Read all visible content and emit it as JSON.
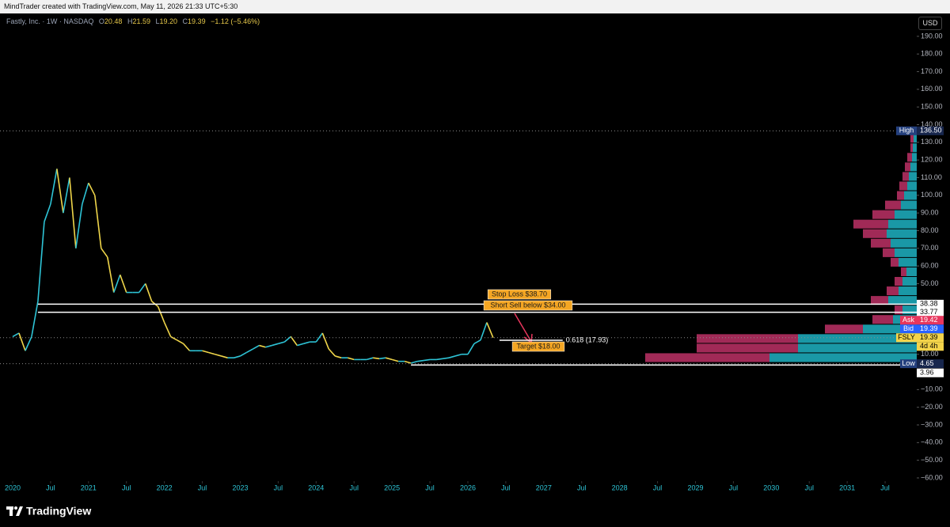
{
  "header": {
    "credit": "MindTrader created with TradingView.com, May 11, 2026 21:33 UTC+5:30",
    "currency": "USD"
  },
  "footer": {
    "brand": "TradingView"
  },
  "chart_data": {
    "type": "line",
    "title": "Fastly, Inc. · 1W · NASDAQ",
    "ohlc": [
      {
        "key": "O",
        "text": "20.48"
      },
      {
        "key": "H",
        "text": "21.59"
      },
      {
        "key": "L",
        "text": "19.20"
      },
      {
        "key": "C",
        "text": "19.39"
      }
    ],
    "change": "−1.12 (−5.46%)",
    "x": [
      "2020-01",
      "2020-02",
      "2020-03",
      "2020-04",
      "2020-05",
      "2020-06",
      "2020-07",
      "2020-08",
      "2020-09",
      "2020-10",
      "2020-11",
      "2020-12",
      "2021-01",
      "2021-02",
      "2021-03",
      "2021-04",
      "2021-05",
      "2021-06",
      "2021-07",
      "2021-08",
      "2021-09",
      "2021-10",
      "2021-11",
      "2021-12",
      "2022-01",
      "2022-02",
      "2022-03",
      "2022-04",
      "2022-05",
      "2022-06",
      "2022-07",
      "2022-08",
      "2022-09",
      "2022-10",
      "2022-11",
      "2022-12",
      "2023-01",
      "2023-02",
      "2023-03",
      "2023-04",
      "2023-05",
      "2023-06",
      "2023-07",
      "2023-08",
      "2023-09",
      "2023-10",
      "2023-11",
      "2023-12",
      "2024-01",
      "2024-02",
      "2024-03",
      "2024-04",
      "2024-05",
      "2024-06",
      "2024-07",
      "2024-08",
      "2024-09",
      "2024-10",
      "2024-11",
      "2024-12",
      "2025-01",
      "2025-02",
      "2025-03",
      "2025-04",
      "2025-05",
      "2025-06",
      "2025-07",
      "2025-08",
      "2025-09",
      "2025-10",
      "2025-11",
      "2025-12",
      "2026-01",
      "2026-02",
      "2026-03",
      "2026-04",
      "2026-05"
    ],
    "series": [
      {
        "up_color": "#2ec4d6",
        "down_color": "#f0d64a",
        "values": [
          20,
          22,
          12,
          20,
          40,
          85,
          95,
          115,
          90,
          110,
          70,
          95,
          107,
          100,
          70,
          65,
          45,
          55,
          45,
          45,
          45,
          50,
          40,
          37,
          28,
          20,
          18,
          16,
          12,
          12,
          12,
          11,
          10,
          9,
          8,
          8,
          9,
          11,
          13,
          15,
          14,
          15,
          16,
          17,
          20,
          15,
          16,
          17,
          17,
          22,
          13,
          9,
          8,
          8,
          7,
          7,
          7,
          8,
          7.5,
          8,
          7,
          6,
          6,
          5,
          6,
          6.5,
          7,
          7,
          7.5,
          8,
          9,
          10,
          10,
          16,
          18,
          28,
          19.39
        ]
      }
    ],
    "xlim": [
      "2019-11",
      "2031-12"
    ],
    "xticks": [
      {
        "value": "2020-01",
        "label": "2020"
      },
      {
        "value": "2020-07",
        "label": "Jul"
      },
      {
        "value": "2021-01",
        "label": "2021"
      },
      {
        "value": "2021-07",
        "label": "Jul"
      },
      {
        "value": "2022-01",
        "label": "2022"
      },
      {
        "value": "2022-07",
        "label": "Jul"
      },
      {
        "value": "2023-01",
        "label": "2023"
      },
      {
        "value": "2023-07",
        "label": "Jul"
      },
      {
        "value": "2024-01",
        "label": "2024"
      },
      {
        "value": "2024-07",
        "label": "Jul"
      },
      {
        "value": "2025-01",
        "label": "2025"
      },
      {
        "value": "2025-07",
        "label": "Jul"
      },
      {
        "value": "2026-01",
        "label": "2026"
      },
      {
        "value": "2026-07",
        "label": "Jul"
      },
      {
        "value": "2027-01",
        "label": "2027"
      },
      {
        "value": "2027-07",
        "label": "Jul"
      },
      {
        "value": "2028-01",
        "label": "2028"
      },
      {
        "value": "2028-07",
        "label": "Jul"
      },
      {
        "value": "2029-01",
        "label": "2029"
      },
      {
        "value": "2029-07",
        "label": "Jul"
      },
      {
        "value": "2030-01",
        "label": "2030"
      },
      {
        "value": "2030-07",
        "label": "Jul"
      },
      {
        "value": "2031-01",
        "label": "2031"
      },
      {
        "value": "2031-07",
        "label": "Jul"
      }
    ],
    "ylim": [
      -61.8,
      202.5
    ],
    "yticks": [
      {
        "value": 190,
        "label": "190.00"
      },
      {
        "value": 180,
        "label": "180.00"
      },
      {
        "value": 170,
        "label": "170.00"
      },
      {
        "value": 160,
        "label": "160.00"
      },
      {
        "value": 150,
        "label": "150.00"
      },
      {
        "value": 140,
        "label": "140.00"
      },
      {
        "value": 130,
        "label": "130.00"
      },
      {
        "value": 120,
        "label": "120.00"
      },
      {
        "value": 110,
        "label": "110.00"
      },
      {
        "value": 100,
        "label": "100.00"
      },
      {
        "value": 90,
        "label": "90.00"
      },
      {
        "value": 80,
        "label": "80.00"
      },
      {
        "value": 70,
        "label": "70.00"
      },
      {
        "value": 60,
        "label": "60.00"
      },
      {
        "value": 50,
        "label": "50.00"
      },
      {
        "value": 10,
        "label": "10.00"
      },
      {
        "value": -10,
        "label": "−10.00"
      },
      {
        "value": -20,
        "label": "−20.00"
      },
      {
        "value": -30,
        "label": "−30.00"
      },
      {
        "value": -40,
        "label": "−40.00"
      },
      {
        "value": -50,
        "label": "−50.00"
      },
      {
        "value": -60,
        "label": "−60.00"
      }
    ],
    "grid": false,
    "volume_profile": {
      "up_color": "#1a98a6",
      "down_color": "#a12a57",
      "price": [
        8.1,
        13.5,
        18.9,
        24.3,
        29.7,
        35.1,
        40.5,
        45.9,
        51.3,
        56.7,
        62.1,
        67.5,
        72.9,
        78.3,
        83.7,
        89.1,
        94.5,
        99.9,
        105.3,
        110.7,
        116.1,
        121.5,
        126.9,
        132.3
      ],
      "up": [
        186,
        150,
        150,
        68,
        30,
        18,
        36,
        23,
        18,
        13,
        23,
        28,
        33,
        38,
        36,
        28,
        20,
        16,
        12,
        10,
        8,
        6,
        5,
        4
      ],
      "down": [
        157,
        128,
        128,
        48,
        26,
        10,
        22,
        15,
        10,
        7,
        10,
        15,
        25,
        30,
        44,
        28,
        20,
        9,
        10,
        8,
        7,
        6,
        3,
        4
      ]
    },
    "price_labels": [
      {
        "tag": "High",
        "value": 136.5,
        "label": "136.50",
        "tag_color": "#24407e",
        "color": "#17264d",
        "text_color": "#ffffff",
        "line": "dotted"
      },
      {
        "value": 38.38,
        "label": "38.38",
        "color": "#ffffff",
        "text_color": "#000000",
        "line": "solid",
        "from": "2020-05"
      },
      {
        "value": 33.77,
        "label": "33.77",
        "color": "#ffffff",
        "text_color": "#000000",
        "line": "solid",
        "from": "2020-05"
      },
      {
        "tag": "Ask",
        "value": 19.42,
        "label": "19.42",
        "tag_color": "#e8365d",
        "color": "#e8365d",
        "text_color": "#ffffff"
      },
      {
        "tag": "Bid",
        "value": 19.39,
        "label": "19.39",
        "tag_color": "#2962ff",
        "color": "#2962ff",
        "text_color": "#ffffff"
      },
      {
        "tag": "FSLY",
        "value": 19.39,
        "label": "19.39",
        "tag_color": "#f3d34a",
        "color": "#f3d34a",
        "text_color": "#000000",
        "line": "dotted",
        "countdown": "4d 4h"
      },
      {
        "tag": "Low",
        "value": 4.65,
        "label": "4.65",
        "tag_color": "#24407e",
        "color": "#17264d",
        "text_color": "#ffffff",
        "line": "dotted"
      },
      {
        "value": 3.96,
        "label": "3.96",
        "color": "#ffffff",
        "text_color": "#000000",
        "line": "solid",
        "from": "2025-04"
      }
    ],
    "fib": {
      "label": "0.618 (17.93)",
      "value": 17.93,
      "from": "2026-06",
      "to": "2027-04"
    },
    "annotations": [
      {
        "text": "Stop Loss $38.70"
      },
      {
        "text": "Short Sell below $34.00"
      },
      {
        "text": "Target $18.00"
      }
    ]
  }
}
